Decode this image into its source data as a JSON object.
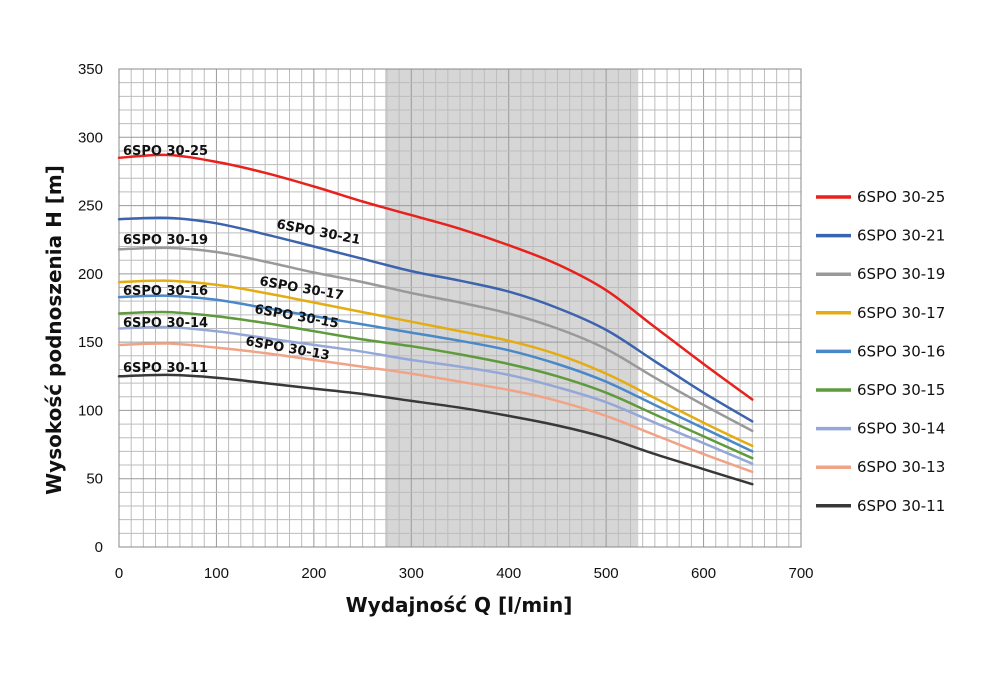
{
  "chart_data": {
    "type": "line",
    "title": "",
    "xlabel": "Wydajność Q [l/min]",
    "ylabel": "Wysokość podnoszenia H [m]",
    "xlim": [
      0,
      700
    ],
    "ylim": [
      0,
      350
    ],
    "x_ticks": [
      0,
      100,
      200,
      300,
      400,
      500,
      600,
      700
    ],
    "y_ticks": [
      0,
      50,
      100,
      150,
      200,
      250,
      300,
      350
    ],
    "grid": true,
    "legend_position": "right",
    "highlight_range": [
      273,
      533
    ],
    "x": [
      0,
      50,
      100,
      150,
      200,
      250,
      300,
      350,
      400,
      450,
      500,
      550,
      600,
      650
    ],
    "series": [
      {
        "name": "6SPO 30-25",
        "color": "#e8211d",
        "label": "6SPO 30-25",
        "values": [
          285,
          287,
          282,
          274,
          264,
          253,
          243,
          233,
          221,
          207,
          188,
          161,
          134,
          108
        ]
      },
      {
        "name": "6SPO 30-21",
        "color": "#3c63ad",
        "label": "6SPO 30-21",
        "values": [
          240,
          241,
          237,
          229,
          220,
          211,
          202,
          195,
          187,
          175,
          159,
          136,
          113,
          92
        ]
      },
      {
        "name": "6SPO 30-19",
        "color": "#999999",
        "label": "6SPO 30-19",
        "values": [
          218,
          219,
          216,
          209,
          201,
          194,
          186,
          179,
          171,
          160,
          145,
          124,
          104,
          85
        ]
      },
      {
        "name": "6SPO 30-17",
        "color": "#e5ac12",
        "label": "6SPO 30-17",
        "values": [
          194,
          195,
          192,
          186,
          179,
          172,
          165,
          158,
          151,
          141,
          127,
          109,
          91,
          74
        ]
      },
      {
        "name": "6SPO 30-16",
        "color": "#4a88c7",
        "label": "6SPO 30-16",
        "values": [
          183,
          184,
          181,
          175,
          169,
          163,
          157,
          151,
          144,
          134,
          121,
          104,
          87,
          70
        ]
      },
      {
        "name": "6SPO 30-15",
        "color": "#5f9a3d",
        "label": "6SPO 30-15",
        "values": [
          171,
          172,
          169,
          164,
          158,
          152,
          147,
          141,
          134,
          125,
          113,
          97,
          81,
          65
        ]
      },
      {
        "name": "6SPO 30-14",
        "color": "#94a8d8",
        "label": "6SPO 30-14",
        "values": [
          160,
          161,
          158,
          153,
          148,
          143,
          137,
          132,
          126,
          117,
          106,
          91,
          76,
          61
        ]
      },
      {
        "name": "6SPO 30-13",
        "color": "#f0a386",
        "label": "6SPO 30-13",
        "values": [
          148,
          149,
          146,
          142,
          137,
          132,
          127,
          121,
          115,
          107,
          96,
          82,
          68,
          55
        ]
      },
      {
        "name": "6SPO 30-11",
        "color": "#383838",
        "label": "6SPO 30-11",
        "values": [
          125,
          126,
          124,
          120,
          116,
          112,
          107,
          102,
          96,
          89,
          80,
          68,
          57,
          46
        ]
      }
    ]
  }
}
